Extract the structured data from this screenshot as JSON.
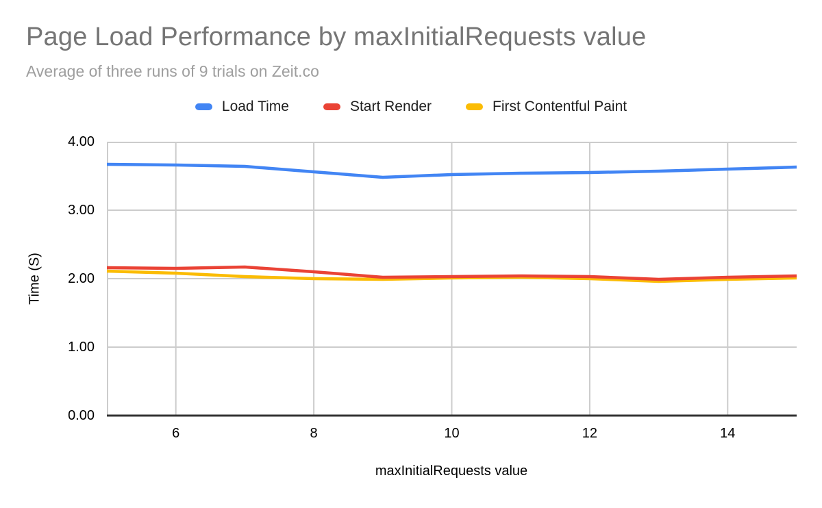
{
  "header": {
    "title": "Page Load Performance by maxInitialRequests value",
    "subtitle": "Average of three runs of 9 trials on Zeit.co"
  },
  "chart_data": {
    "type": "line",
    "title": "Page Load Performance by maxInitialRequests value",
    "subtitle": "Average of three runs of 9 trials on Zeit.co",
    "xlabel": "maxInitialRequests value",
    "ylabel": "Time (S)",
    "xlim": [
      5,
      15
    ],
    "ylim": [
      0,
      4
    ],
    "grid": true,
    "legend_position": "top",
    "x": [
      5,
      6,
      7,
      8,
      9,
      10,
      11,
      12,
      13,
      14,
      15
    ],
    "x_ticks": [
      6,
      8,
      10,
      12,
      14
    ],
    "y_ticks": [
      "4.00",
      "3.00",
      "2.00",
      "1.00",
      "0.00"
    ],
    "y_tick_values": [
      4,
      3,
      2,
      1,
      0
    ],
    "series": [
      {
        "name": "Load Time",
        "color": "#4285f4",
        "values": [
          3.67,
          3.66,
          3.64,
          3.56,
          3.48,
          3.52,
          3.54,
          3.55,
          3.57,
          3.6,
          3.63
        ]
      },
      {
        "name": "Start Render",
        "color": "#ea4335",
        "values": [
          2.16,
          2.15,
          2.17,
          2.1,
          2.02,
          2.03,
          2.04,
          2.03,
          1.99,
          2.02,
          2.04
        ]
      },
      {
        "name": "First Contentful Paint",
        "color": "#fbbc04",
        "values": [
          2.11,
          2.08,
          2.03,
          2.0,
          1.99,
          2.01,
          2.02,
          2.0,
          1.96,
          1.99,
          2.01
        ]
      }
    ],
    "colors": {
      "gridline": "#cccccc",
      "axis_line": "#333333",
      "tick_label": "#000000",
      "title": "#757575",
      "subtitle": "#9e9e9e"
    }
  }
}
